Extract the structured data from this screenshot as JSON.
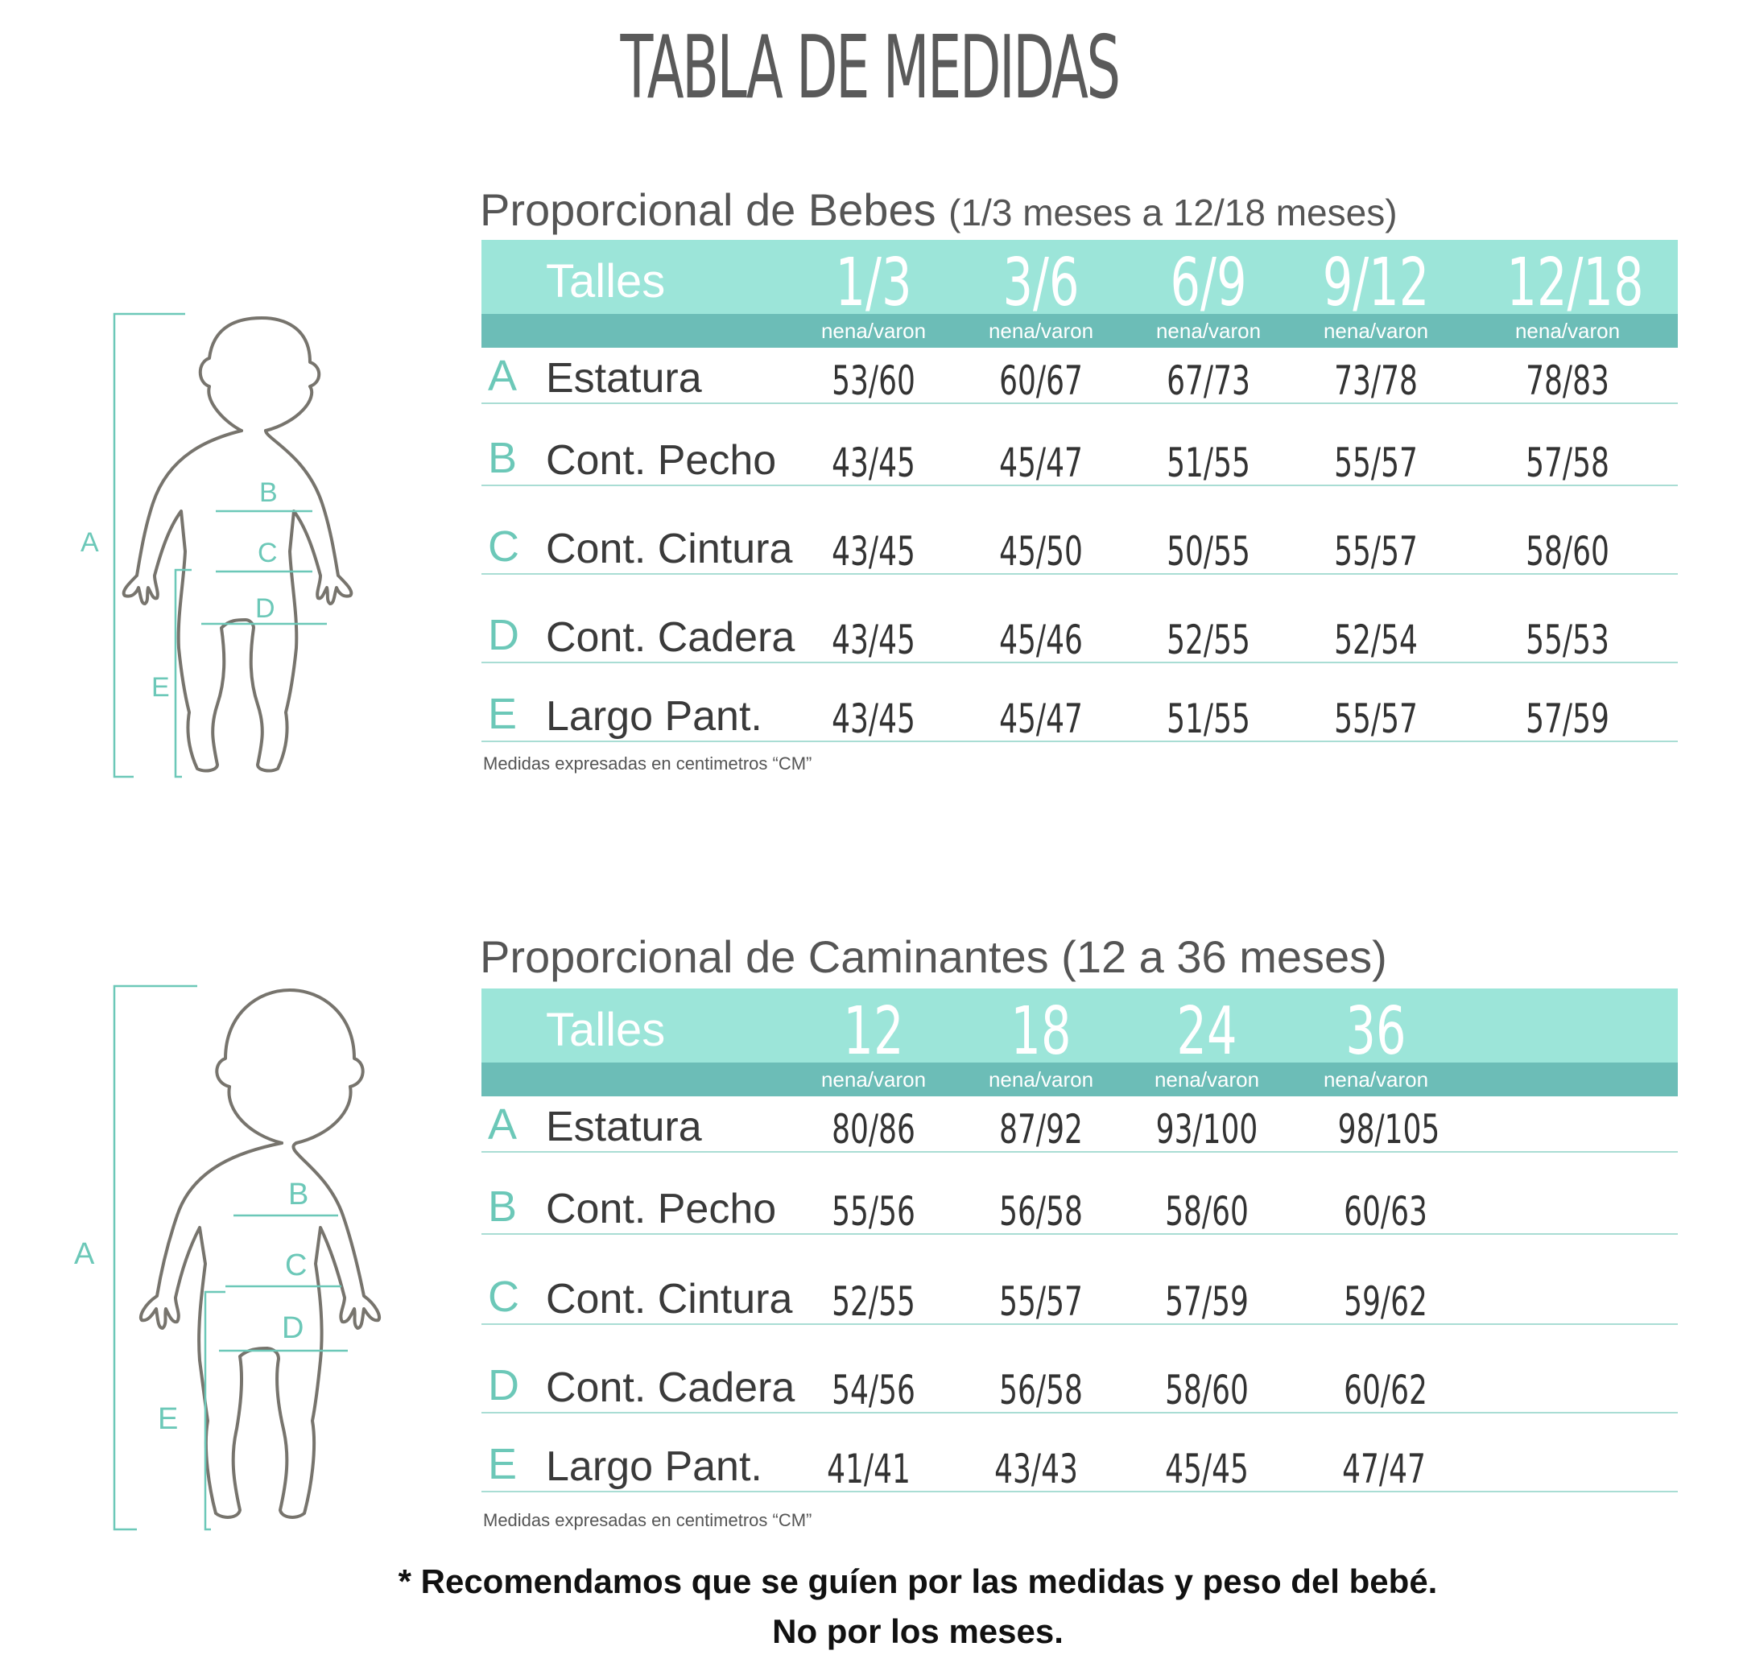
{
  "title": "TABLA DE MEDIDAS",
  "bebes": {
    "subtitle_main": "Proporcional de Bebes",
    "subtitle_range": "(1/3 meses a 12/18 meses)",
    "talles_label": "Talles",
    "sizes": [
      "1/3",
      "3/6",
      "6/9",
      "9/12",
      "12/18"
    ],
    "sub_label": "nena/varon",
    "rows": [
      {
        "letter": "A",
        "label": "Estatura",
        "values": [
          "53/60",
          "60/67",
          "67/73",
          "73/78",
          "78/83"
        ]
      },
      {
        "letter": "B",
        "label": "Cont. Pecho",
        "values": [
          "43/45",
          "45/47",
          "51/55",
          "55/57",
          "57/58"
        ]
      },
      {
        "letter": "C",
        "label": "Cont. Cintura",
        "values": [
          "43/45",
          "45/50",
          "50/55",
          "55/57",
          "58/60"
        ]
      },
      {
        "letter": "D",
        "label": "Cont. Cadera",
        "values": [
          "43/45",
          "45/46",
          "52/55",
          "52/54",
          "55/53"
        ]
      },
      {
        "letter": "E",
        "label": "Largo Pant.",
        "values": [
          "43/45",
          "45/47",
          "51/55",
          "55/57",
          "57/59"
        ]
      }
    ],
    "note": "Medidas expresadas en centimetros “CM”",
    "figure_labels": {
      "A": "A",
      "B": "B",
      "C": "C",
      "D": "D",
      "E": "E"
    }
  },
  "caminantes": {
    "subtitle_main": "Proporcional de Caminantes (12 a 36 meses)",
    "talles_label": "Talles",
    "sizes": [
      "12",
      "18",
      "24",
      "36"
    ],
    "sub_label": "nena/varon",
    "rows": [
      {
        "letter": "A",
        "label": "Estatura",
        "values": [
          "80/86",
          "87/92",
          "93/100",
          "98/105"
        ]
      },
      {
        "letter": "B",
        "label": "Cont. Pecho",
        "values": [
          "55/56",
          "56/58",
          "58/60",
          "60/63"
        ]
      },
      {
        "letter": "C",
        "label": "Cont. Cintura",
        "values": [
          "52/55",
          "55/57",
          "57/59",
          "59/62"
        ]
      },
      {
        "letter": "D",
        "label": "Cont. Cadera",
        "values": [
          "54/56",
          "56/58",
          "58/60",
          "60/62"
        ]
      },
      {
        "letter": "E",
        "label": "Largo Pant.",
        "values": [
          "41/41",
          "43/43",
          "45/45",
          "47/47"
        ]
      }
    ],
    "note": "Medidas expresadas en centimetros “CM”",
    "figure_labels": {
      "A": "A",
      "B": "B",
      "C": "C",
      "D": "D",
      "E": "E"
    }
  },
  "footer": {
    "line1": "* Recomendamos que se guíen por las medidas y peso del bebé.",
    "line2": "No por los meses."
  },
  "colors": {
    "header_light": "#9ce5d9",
    "header_dark": "#6cbdb7",
    "accent_letters": "#6cc8b8",
    "figure_outline": "#77746d"
  }
}
